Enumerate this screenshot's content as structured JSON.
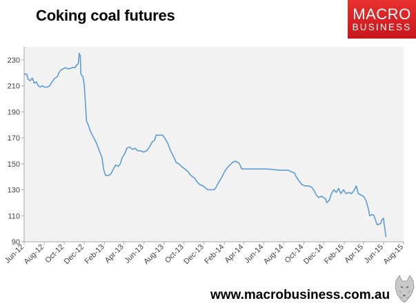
{
  "header": {
    "title": "Coking coal futures"
  },
  "brand": {
    "logo_line1": "MACRO",
    "logo_line2": "BUSINESS",
    "logo_color": "#d7202a",
    "footer_url": "www.macrobusiness.com.au"
  },
  "chart_data": {
    "type": "line",
    "title": "Coking coal futures",
    "xlabel": "",
    "ylabel": "",
    "ylim": [
      90,
      240
    ],
    "yticks": [
      90,
      110,
      130,
      150,
      170,
      190,
      210,
      230
    ],
    "xlim": [
      "2012-06-01",
      "2015-08-01"
    ],
    "xticks": [
      "Jun-12",
      "Aug-12",
      "Oct-12",
      "Dec-12",
      "Feb-13",
      "Apr-13",
      "Jun-13",
      "Aug-13",
      "Oct-13",
      "Dec-13",
      "Feb-14",
      "Apr-14",
      "Jun-14",
      "Aug-14",
      "Oct-14",
      "Dec-14",
      "Feb-15",
      "Apr-15",
      "Jun-15",
      "Aug-15"
    ],
    "grid": false,
    "plot_background": "#f2f2f2",
    "line_color": "#5b9bd5",
    "series": [
      {
        "points": [
          [
            "2012-06-01",
            219
          ],
          [
            "2012-06-09",
            219
          ],
          [
            "2012-06-13",
            215
          ],
          [
            "2012-06-20",
            214
          ],
          [
            "2012-06-26",
            216
          ],
          [
            "2012-07-02",
            212
          ],
          [
            "2012-07-08",
            213
          ],
          [
            "2012-07-14",
            210
          ],
          [
            "2012-07-20",
            209
          ],
          [
            "2012-07-26",
            210
          ],
          [
            "2012-08-02",
            209
          ],
          [
            "2012-08-10",
            209
          ],
          [
            "2012-08-18",
            210
          ],
          [
            "2012-08-25",
            213
          ],
          [
            "2012-09-03",
            216
          ],
          [
            "2012-09-10",
            217
          ],
          [
            "2012-09-15",
            220
          ],
          [
            "2012-09-20",
            222
          ],
          [
            "2012-09-27",
            223
          ],
          [
            "2012-10-05",
            224
          ],
          [
            "2012-10-15",
            223
          ],
          [
            "2012-10-25",
            224
          ],
          [
            "2012-11-03",
            224
          ],
          [
            "2012-11-08",
            226
          ],
          [
            "2012-11-13",
            227
          ],
          [
            "2012-11-16",
            235
          ],
          [
            "2012-11-19",
            233
          ],
          [
            "2012-11-21",
            219
          ],
          [
            "2012-11-27",
            217
          ],
          [
            "2012-12-01",
            211
          ],
          [
            "2012-12-05",
            195
          ],
          [
            "2012-12-08",
            183
          ],
          [
            "2012-12-13",
            180
          ],
          [
            "2012-12-20",
            175
          ],
          [
            "2012-12-28",
            171
          ],
          [
            "2013-01-07",
            166
          ],
          [
            "2013-01-16",
            160
          ],
          [
            "2013-01-24",
            155
          ],
          [
            "2013-01-29",
            146
          ],
          [
            "2013-02-04",
            141
          ],
          [
            "2013-02-12",
            141
          ],
          [
            "2013-02-20",
            142
          ],
          [
            "2013-02-28",
            146
          ],
          [
            "2013-03-07",
            149
          ],
          [
            "2013-03-15",
            148
          ],
          [
            "2013-03-21",
            150
          ],
          [
            "2013-03-27",
            155
          ],
          [
            "2013-04-04",
            158
          ],
          [
            "2013-04-10",
            162
          ],
          [
            "2013-04-18",
            163
          ],
          [
            "2013-04-27",
            161
          ],
          [
            "2013-05-05",
            162
          ],
          [
            "2013-05-13",
            160
          ],
          [
            "2013-05-21",
            160
          ],
          [
            "2013-05-31",
            159
          ],
          [
            "2013-06-10",
            160
          ],
          [
            "2013-06-18",
            163
          ],
          [
            "2013-06-27",
            167
          ],
          [
            "2013-07-03",
            168
          ],
          [
            "2013-07-08",
            172
          ],
          [
            "2013-07-20",
            172
          ],
          [
            "2013-07-28",
            172
          ],
          [
            "2013-08-03",
            170
          ],
          [
            "2013-08-12",
            166
          ],
          [
            "2013-08-21",
            160
          ],
          [
            "2013-08-27",
            157
          ],
          [
            "2013-09-02",
            154
          ],
          [
            "2013-09-07",
            151
          ],
          [
            "2013-09-15",
            150
          ],
          [
            "2013-09-23",
            148
          ],
          [
            "2013-10-03",
            146
          ],
          [
            "2013-10-13",
            144
          ],
          [
            "2013-10-22",
            141
          ],
          [
            "2013-11-02",
            139
          ],
          [
            "2013-11-10",
            136
          ],
          [
            "2013-11-18",
            134
          ],
          [
            "2013-11-28",
            133
          ],
          [
            "2013-12-07",
            131
          ],
          [
            "2013-12-12",
            130
          ],
          [
            "2013-12-22",
            130
          ],
          [
            "2014-01-01",
            130
          ],
          [
            "2014-01-07",
            132
          ],
          [
            "2014-01-13",
            135
          ],
          [
            "2014-01-23",
            139
          ],
          [
            "2014-02-02",
            144
          ],
          [
            "2014-02-10",
            147
          ],
          [
            "2014-02-18",
            149
          ],
          [
            "2014-02-26",
            151
          ],
          [
            "2014-03-06",
            152
          ],
          [
            "2014-03-14",
            151
          ],
          [
            "2014-03-19",
            150
          ],
          [
            "2014-03-26",
            146
          ],
          [
            "2014-05-01",
            146
          ],
          [
            "2014-06-10",
            146
          ],
          [
            "2014-07-20",
            145
          ],
          [
            "2014-08-15",
            145
          ],
          [
            "2014-08-22",
            144
          ],
          [
            "2014-09-02",
            143
          ],
          [
            "2014-09-08",
            140
          ],
          [
            "2014-09-16",
            137
          ],
          [
            "2014-09-25",
            134
          ],
          [
            "2014-10-05",
            133
          ],
          [
            "2014-10-15",
            133
          ],
          [
            "2014-10-25",
            132
          ],
          [
            "2014-11-02",
            129
          ],
          [
            "2014-11-08",
            126
          ],
          [
            "2014-11-15",
            124
          ],
          [
            "2014-11-23",
            125
          ],
          [
            "2014-12-01",
            124
          ],
          [
            "2014-12-06",
            123
          ],
          [
            "2014-12-10",
            120
          ],
          [
            "2014-12-18",
            122
          ],
          [
            "2014-12-24",
            127
          ],
          [
            "2015-01-01",
            130
          ],
          [
            "2015-01-08",
            128
          ],
          [
            "2015-01-15",
            131
          ],
          [
            "2015-01-22",
            127
          ],
          [
            "2015-01-30",
            130
          ],
          [
            "2015-02-07",
            127
          ],
          [
            "2015-02-15",
            128
          ],
          [
            "2015-02-23",
            127
          ],
          [
            "2015-03-02",
            129
          ],
          [
            "2015-03-10",
            133
          ],
          [
            "2015-03-16",
            127
          ],
          [
            "2015-03-24",
            126
          ],
          [
            "2015-04-01",
            125
          ],
          [
            "2015-04-08",
            122
          ],
          [
            "2015-04-15",
            116
          ],
          [
            "2015-04-20",
            110
          ],
          [
            "2015-04-28",
            111
          ],
          [
            "2015-05-03",
            110
          ],
          [
            "2015-05-08",
            106
          ],
          [
            "2015-05-13",
            103
          ],
          [
            "2015-05-23",
            104
          ],
          [
            "2015-05-27",
            107
          ],
          [
            "2015-06-01",
            108
          ],
          [
            "2015-06-03",
            103
          ],
          [
            "2015-06-05",
            100
          ],
          [
            "2015-06-08",
            94
          ]
        ]
      }
    ]
  }
}
